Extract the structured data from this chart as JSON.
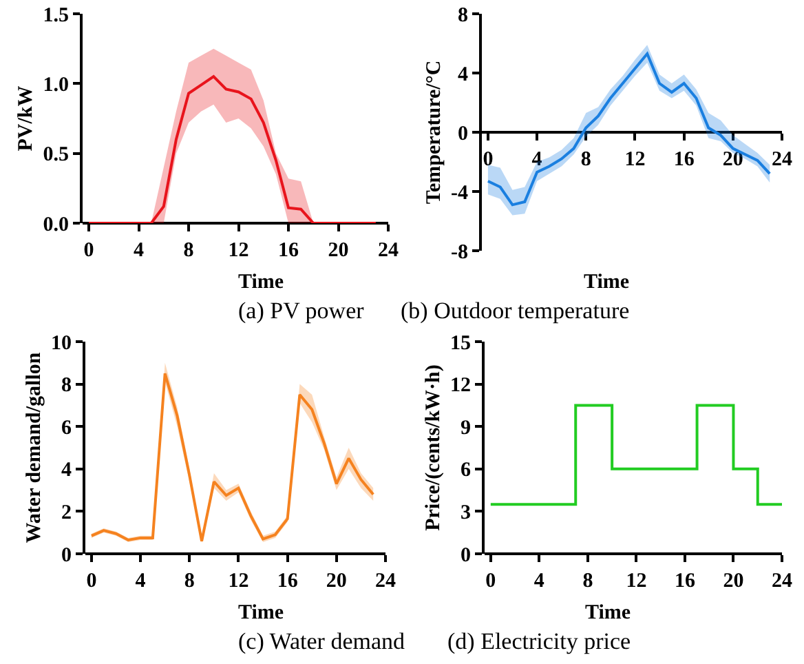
{
  "chart_data": [
    {
      "type": "line",
      "title": "(a) PV power",
      "xlabel": "Time",
      "ylabel": "PV/kW",
      "x": [
        0,
        1,
        2,
        3,
        4,
        5,
        6,
        7,
        8,
        9,
        10,
        11,
        12,
        13,
        14,
        15,
        16,
        17,
        18,
        19,
        20,
        21,
        22,
        23
      ],
      "series": [
        {
          "color": "#e8141c",
          "values": [
            0,
            0,
            0,
            0,
            0,
            0,
            0.12,
            0.6,
            0.93,
            0.99,
            1.05,
            0.96,
            0.94,
            0.89,
            0.72,
            0.45,
            0.11,
            0.1,
            0,
            0,
            0,
            0,
            0,
            0
          ],
          "lower": [
            0,
            0,
            0,
            0,
            0,
            0,
            0,
            0.5,
            0.72,
            0.8,
            0.85,
            0.72,
            0.75,
            0.68,
            0.55,
            0.35,
            0,
            0,
            0,
            0,
            0,
            0,
            0,
            0
          ],
          "upper": [
            0,
            0,
            0,
            0,
            0,
            0,
            0.4,
            0.8,
            1.15,
            1.2,
            1.25,
            1.2,
            1.15,
            1.1,
            0.88,
            0.5,
            0.32,
            0.3,
            0,
            0,
            0,
            0,
            0,
            0
          ]
        }
      ],
      "xlim": [
        -0.5,
        24
      ],
      "xticks": [
        0,
        4,
        8,
        12,
        16,
        20,
        24
      ],
      "ylim": [
        0,
        1.5
      ],
      "yticks": [
        {
          "value": 0,
          "label": "0.0"
        },
        {
          "value": 0.5,
          "label": "0.5"
        },
        {
          "value": 1,
          "label": "1.0"
        },
        {
          "value": 1.5,
          "label": "1.5"
        }
      ],
      "grid": false,
      "marker": "none",
      "line_style": "solid"
    },
    {
      "type": "line",
      "title": "(b) Outdoor temperature",
      "xlabel": "Time",
      "ylabel": "Temperature/°C",
      "x": [
        0,
        1,
        2,
        3,
        4,
        5,
        6,
        7,
        8,
        9,
        10,
        11,
        12,
        13,
        14,
        15,
        16,
        17,
        18,
        19,
        20,
        21,
        22,
        23
      ],
      "series": [
        {
          "color": "#1a7fe0",
          "values": [
            -3.3,
            -3.7,
            -4.9,
            -4.7,
            -2.7,
            -2.3,
            -1.8,
            -1.1,
            0.3,
            1.1,
            2.3,
            3.3,
            4.3,
            5.3,
            3.3,
            2.7,
            3.3,
            2.3,
            0.3,
            -0.2,
            -1.1,
            -1.5,
            -1.9,
            -2.8
          ],
          "lower": [
            -4.2,
            -4.5,
            -5.6,
            -5.5,
            -3.3,
            -2.8,
            -2.3,
            -1.5,
            -0.3,
            0.5,
            1.8,
            2.8,
            3.8,
            4.7,
            2.8,
            2.3,
            2.8,
            1.8,
            -0.4,
            -0.6,
            -1.4,
            -1.8,
            -2.3,
            -3.4
          ],
          "upper": [
            -2.2,
            -2.4,
            -3.9,
            -3.7,
            -2.0,
            -1.7,
            -1.2,
            -0.4,
            1.3,
            1.7,
            2.9,
            3.8,
            4.9,
            5.9,
            3.9,
            3.3,
            3.9,
            2.9,
            1.3,
            0.8,
            -0.2,
            -0.8,
            -1.4,
            -2.2
          ]
        }
      ],
      "xlim": [
        -0.5,
        24
      ],
      "xticks": [
        0,
        4,
        8,
        12,
        16,
        20,
        24
      ],
      "ylim": [
        -8,
        8
      ],
      "yticks": [
        -8,
        -4,
        0,
        4,
        8
      ],
      "grid": false,
      "marker": "none",
      "line_style": "solid"
    },
    {
      "type": "line",
      "title": "(c) Water demand",
      "xlabel": "Time",
      "ylabel": "Water demand/gallon",
      "x": [
        0,
        1,
        2,
        3,
        4,
        5,
        6,
        7,
        8,
        9,
        10,
        11,
        12,
        13,
        14,
        15,
        16,
        17,
        18,
        19,
        20,
        21,
        22,
        23
      ],
      "series": [
        {
          "color": "#f5821f",
          "values": [
            0.85,
            1.1,
            0.95,
            0.65,
            0.75,
            0.75,
            8.5,
            6.5,
            3.7,
            0.6,
            3.4,
            2.75,
            3.1,
            1.8,
            0.7,
            0.9,
            1.65,
            7.5,
            6.8,
            5.2,
            3.3,
            4.5,
            3.5,
            2.8
          ],
          "lower": [
            0.75,
            1.0,
            0.85,
            0.55,
            0.65,
            0.65,
            8.1,
            6.0,
            3.4,
            0.5,
            3.1,
            2.5,
            2.9,
            1.6,
            0.55,
            0.75,
            1.5,
            7.1,
            6.2,
            4.9,
            3.0,
            4.0,
            3.1,
            2.5
          ],
          "upper": [
            0.95,
            1.2,
            1.05,
            0.75,
            0.85,
            0.85,
            9.0,
            6.9,
            4.0,
            0.7,
            3.8,
            3.0,
            3.3,
            2.0,
            0.85,
            1.05,
            1.8,
            8.0,
            7.5,
            5.5,
            3.6,
            5.0,
            3.8,
            3.1
          ]
        }
      ],
      "xlim": [
        -0.5,
        24
      ],
      "xticks": [
        0,
        4,
        8,
        12,
        16,
        20,
        24
      ],
      "ylim": [
        0,
        10
      ],
      "yticks": [
        0,
        2,
        4,
        6,
        8,
        10
      ],
      "grid": false,
      "marker": "none",
      "line_style": "solid"
    },
    {
      "type": "step",
      "title": "(d) Electricity price",
      "xlabel": "Time",
      "ylabel": "Price/(cents/kW·h)",
      "x": [
        0,
        7,
        10,
        17,
        20,
        22,
        24
      ],
      "series": [
        {
          "color": "#22cc22",
          "values": [
            3.5,
            10.5,
            6,
            10.5,
            6,
            3.5,
            3.5
          ]
        }
      ],
      "xlim": [
        -0.5,
        24
      ],
      "xticks": [
        0,
        4,
        8,
        12,
        16,
        20,
        24
      ],
      "ylim": [
        0,
        15
      ],
      "yticks": [
        0,
        3,
        6,
        9,
        12,
        15
      ],
      "grid": false,
      "marker": "none",
      "line_style": "solid"
    }
  ]
}
